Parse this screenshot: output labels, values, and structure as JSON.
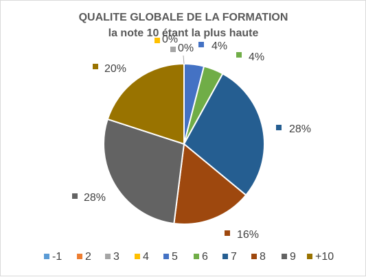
{
  "chart_data": {
    "type": "pie",
    "title": "QUALITE GLOBALE DE LA FORMATION",
    "subtitle": "la note 10 étant la plus haute",
    "legend_position": "bottom",
    "slices": [
      {
        "name": "-1",
        "value": 0,
        "label": "",
        "color": "#5B9BD5"
      },
      {
        "name": "2",
        "value": 0,
        "label": "",
        "color": "#ED7D31"
      },
      {
        "name": "3",
        "value": 0,
        "label": "0%",
        "color": "#A5A5A5"
      },
      {
        "name": "4",
        "value": 0,
        "label": "0%",
        "color": "#FFC000"
      },
      {
        "name": "5",
        "value": 4,
        "label": "4%",
        "color": "#4472C4"
      },
      {
        "name": "6",
        "value": 4,
        "label": "4%",
        "color": "#70AD47"
      },
      {
        "name": "7",
        "value": 28,
        "label": "28%",
        "color": "#255E91"
      },
      {
        "name": "8",
        "value": 16,
        "label": "16%",
        "color": "#9E480E"
      },
      {
        "name": "9",
        "value": 28,
        "label": "28%",
        "color": "#636363"
      },
      {
        "name": "+10",
        "value": 20,
        "label": "20%",
        "color": "#997300"
      }
    ]
  }
}
